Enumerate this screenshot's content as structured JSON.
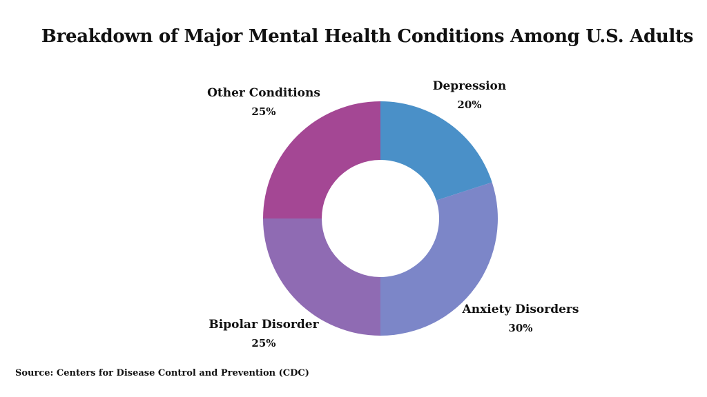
{
  "chart_data": {
    "type": "pie",
    "title": "Breakdown of Major Mental Health Conditions Among U.S. Adults",
    "donut": true,
    "categories": [
      "Depression",
      "Anxiety Disorders",
      "Bipolar Disorder",
      "Other Conditions"
    ],
    "values": [
      20,
      30,
      25,
      25
    ],
    "value_labels": [
      "20%",
      "30%",
      "25%",
      "25%"
    ],
    "colors": [
      "#4a90c8",
      "#7c86c8",
      "#8f6bb3",
      "#a44794"
    ]
  },
  "source": "Source: Centers for Disease Control and Prevention (CDC)"
}
